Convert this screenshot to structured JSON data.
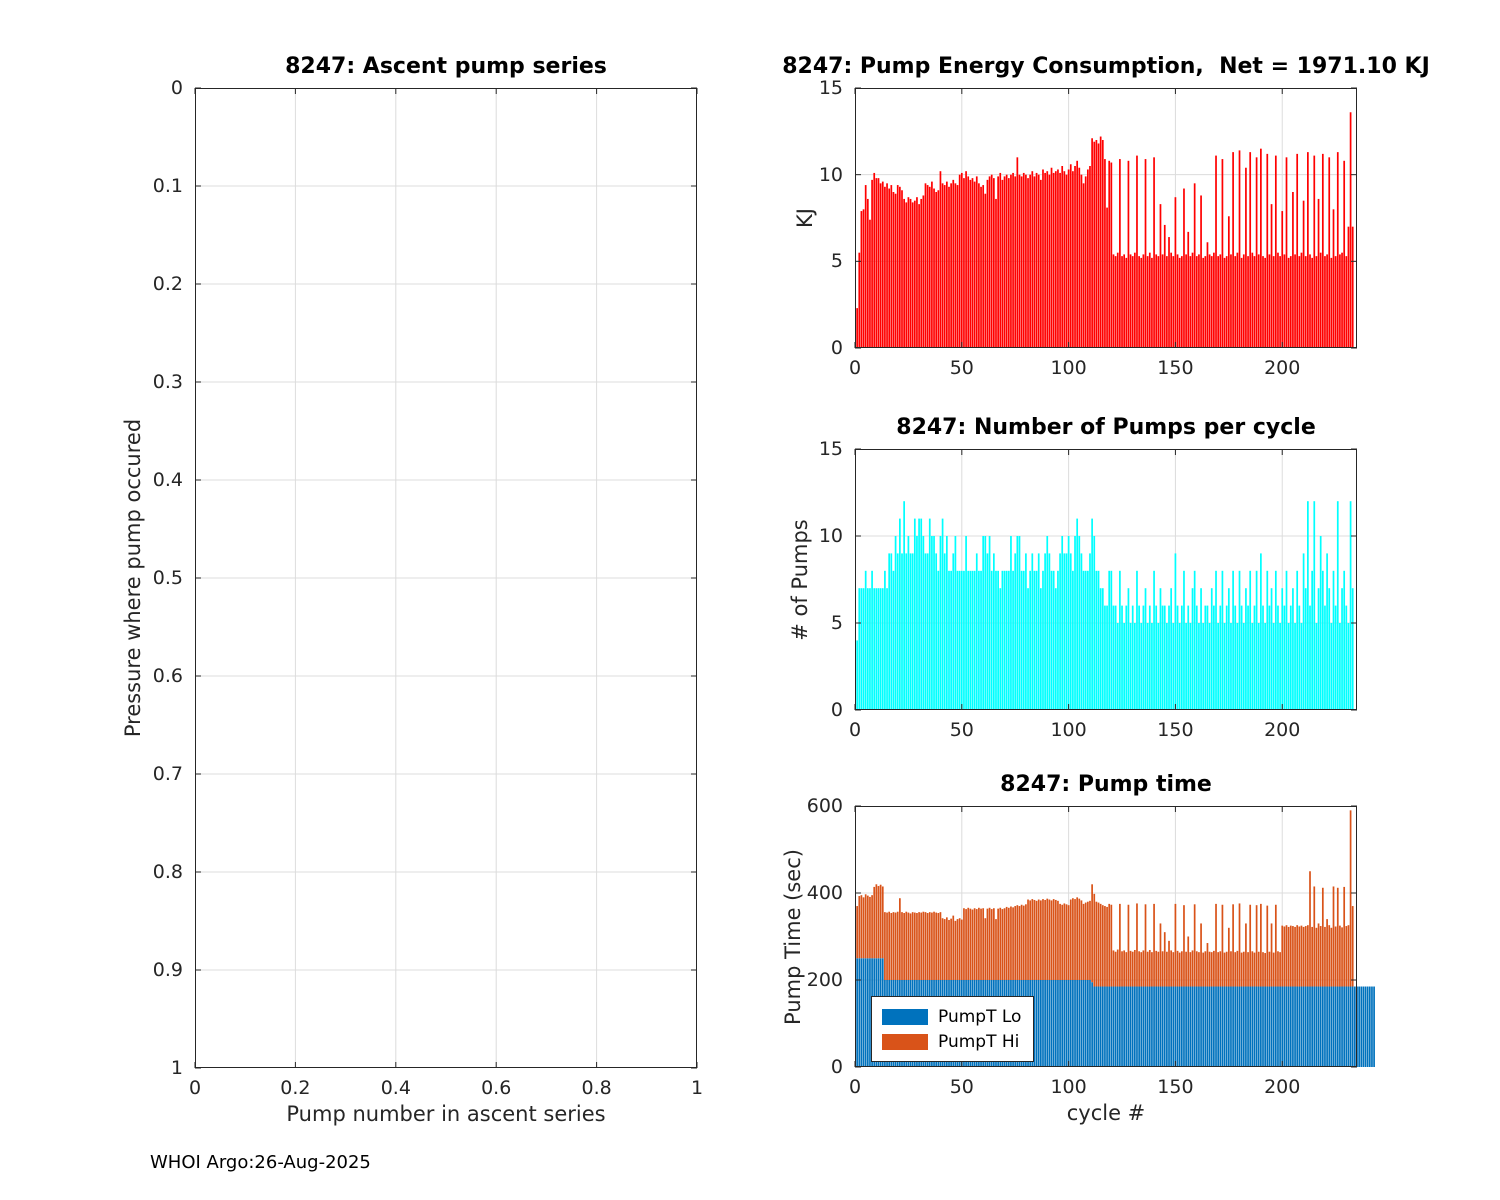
{
  "footer": {
    "text": "WHOI Argo:26-Aug-2025"
  },
  "colors": {
    "axis": "#262626",
    "grid": "#dcdcdc",
    "energy_bar": "#ff0000",
    "pumps_bar": "#00ffff",
    "pumpt_lo": "#0072bd",
    "pumpt_hi": "#d95319"
  },
  "chart_data": [
    {
      "type": "scatter",
      "title": "8247: Ascent pump series",
      "xlabel": "Pump number in ascent series",
      "ylabel": "Pressure where pump occured",
      "xlim": [
        0,
        1
      ],
      "ylim": [
        0,
        1
      ],
      "y_reversed": true,
      "grid": true,
      "xticks": [
        "0",
        "0.2",
        "0.4",
        "0.6",
        "0.8",
        "1"
      ],
      "yticks": [
        "0",
        "0.1",
        "0.2",
        "0.3",
        "0.4",
        "0.5",
        "0.6",
        "0.7",
        "0.8",
        "0.9",
        "1"
      ],
      "values": []
    },
    {
      "type": "bar",
      "title": "8247: Pump Energy Consumption,  Net = 1971.10 KJ",
      "net_kj": 1971.1,
      "xlabel": "",
      "ylabel": "KJ",
      "xlim": [
        0,
        235
      ],
      "ylim": [
        0,
        15
      ],
      "grid": true,
      "xticks": [
        "0",
        "50",
        "100",
        "150",
        "200"
      ],
      "yticks": [
        "0",
        "5",
        "10",
        "15"
      ],
      "bar_color": "#ff0000",
      "values": [
        2.3,
        5.5,
        7.9,
        8.0,
        9.4,
        8.6,
        7.4,
        9.7,
        10.1,
        9.8,
        9.8,
        9.5,
        9.6,
        9.3,
        9.5,
        9.2,
        9.4,
        9.0,
        8.9,
        9.4,
        9.3,
        9.1,
        8.6,
        8.4,
        8.7,
        8.6,
        8.4,
        8.5,
        8.7,
        8.3,
        8.6,
        8.8,
        9.5,
        9.4,
        9.3,
        9.6,
        9.2,
        9.0,
        9.1,
        10.2,
        9.5,
        9.4,
        9.6,
        9.3,
        9.5,
        9.7,
        9.5,
        9.4,
        10.0,
        10.1,
        9.8,
        10.2,
        9.9,
        9.7,
        9.8,
        9.6,
        9.9,
        9.5,
        9.3,
        9.4,
        8.9,
        9.7,
        9.9,
        10.0,
        9.8,
        8.6,
        9.9,
        10.1,
        9.7,
        9.9,
        10.0,
        9.8,
        10.0,
        10.1,
        9.9,
        11.0,
        10.0,
        9.9,
        10.1,
        10.0,
        9.8,
        10.0,
        10.2,
        9.9,
        10.1,
        10.0,
        9.7,
        10.3,
        10.1,
        10.2,
        10.0,
        10.4,
        10.1,
        10.2,
        10.3,
        10.1,
        10.5,
        10.2,
        10.0,
        10.3,
        10.6,
        10.2,
        10.5,
        10.8,
        10.4,
        10.0,
        9.5,
        9.9,
        10.3,
        10.5,
        12.1,
        11.9,
        12.0,
        11.8,
        12.2,
        12.0,
        10.9,
        8.1,
        10.8,
        10.7,
        5.4,
        5.3,
        5.5,
        10.9,
        5.3,
        5.4,
        5.2,
        10.8,
        5.4,
        5.3,
        5.5,
        11.1,
        5.3,
        5.2,
        5.4,
        10.9,
        5.3,
        5.5,
        5.2,
        11.0,
        5.4,
        5.3,
        8.3,
        5.4,
        7.1,
        5.3,
        6.4,
        5.5,
        5.3,
        8.7,
        5.4,
        5.2,
        5.3,
        9.2,
        5.4,
        6.7,
        5.3,
        5.5,
        9.5,
        5.3,
        5.4,
        8.8,
        5.2,
        5.3,
        6.1,
        5.4,
        5.3,
        5.5,
        11.1,
        5.3,
        5.4,
        10.9,
        5.2,
        5.3,
        7.6,
        5.4,
        11.3,
        5.3,
        5.5,
        11.4,
        5.2,
        5.4,
        10.4,
        5.3,
        11.3,
        5.5,
        5.3,
        11.0,
        5.4,
        11.5,
        5.3,
        5.2,
        11.2,
        5.4,
        8.3,
        5.3,
        11.1,
        5.5,
        5.3,
        7.9,
        5.4,
        11.0,
        5.2,
        5.3,
        9.0,
        5.4,
        11.2,
        5.3,
        5.5,
        8.5,
        5.3,
        11.3,
        5.4,
        5.2,
        11.1,
        5.3,
        8.6,
        5.5,
        11.2,
        5.3,
        5.4,
        11.0,
        5.2,
        8.0,
        5.3,
        11.3,
        5.4,
        5.5,
        10.8,
        5.3,
        7.0,
        13.6,
        7.0
      ]
    },
    {
      "type": "bar",
      "title": "8247: Number of Pumps per cycle",
      "xlabel": "",
      "ylabel": "# of Pumps",
      "xlim": [
        0,
        235
      ],
      "ylim": [
        0,
        15
      ],
      "grid": true,
      "xticks": [
        "0",
        "50",
        "100",
        "150",
        "200"
      ],
      "yticks": [
        "0",
        "5",
        "10",
        "15"
      ],
      "bar_color": "#00ffff",
      "values": [
        4,
        7,
        7,
        7,
        8,
        7,
        7,
        8,
        7,
        7,
        7,
        7,
        7,
        8,
        7,
        9,
        9,
        8,
        10,
        9,
        11,
        9,
        12,
        9,
        10,
        9,
        9,
        11,
        10,
        11,
        11,
        10,
        9,
        9,
        11,
        10,
        10,
        9,
        8,
        10,
        11,
        9,
        10,
        8,
        8,
        9,
        10,
        8,
        8,
        8,
        8,
        10,
        8,
        8,
        8,
        8,
        9,
        8,
        8,
        10,
        10,
        9,
        10,
        8,
        9,
        8,
        8,
        7,
        8,
        8,
        8,
        8,
        10,
        8,
        9,
        10,
        10,
        8,
        8,
        9,
        7,
        8,
        9,
        8,
        8,
        9,
        7,
        8,
        9,
        10,
        9,
        8,
        8,
        7,
        8,
        9,
        10,
        9,
        9,
        10,
        9,
        8,
        10,
        11,
        10,
        9,
        8,
        8,
        8,
        9,
        11,
        10,
        8,
        8,
        7,
        7,
        6,
        6,
        8,
        8,
        6,
        6,
        5,
        8,
        6,
        5,
        6,
        7,
        5,
        6,
        5,
        8,
        6,
        5,
        6,
        7,
        5,
        6,
        5,
        8,
        6,
        5,
        7,
        6,
        6,
        5,
        6,
        7,
        5,
        9,
        6,
        5,
        6,
        8,
        5,
        6,
        5,
        7,
        8,
        6,
        5,
        7,
        5,
        6,
        6,
        5,
        7,
        6,
        8,
        5,
        6,
        8,
        5,
        6,
        7,
        5,
        8,
        6,
        5,
        8,
        6,
        5,
        7,
        6,
        8,
        5,
        6,
        8,
        5,
        9,
        6,
        5,
        8,
        6,
        7,
        5,
        8,
        6,
        5,
        7,
        6,
        8,
        5,
        6,
        7,
        5,
        8,
        6,
        5,
        9,
        7,
        12,
        6,
        8,
        12,
        5,
        7,
        10,
        8,
        6,
        9,
        7,
        5,
        8,
        6,
        12,
        5,
        7,
        8,
        6,
        5,
        12,
        7
      ]
    },
    {
      "type": "stacked-bar",
      "title": "8247: Pump time",
      "xlabel": "cycle #",
      "ylabel": "Pump Time (sec)",
      "xlim": [
        0,
        235
      ],
      "ylim": [
        0,
        600
      ],
      "grid": true,
      "legend_position": "lower-left",
      "xticks": [
        "0",
        "50",
        "100",
        "150",
        "200"
      ],
      "yticks": [
        "0",
        "200",
        "400",
        "600"
      ],
      "series": [
        {
          "name": "PumpT Lo",
          "color": "#0072bd",
          "values": [
            250,
            250,
            250,
            250,
            250,
            250,
            250,
            250,
            250,
            250,
            250,
            250,
            250,
            200,
            200,
            200,
            200,
            200,
            200,
            200,
            200,
            200,
            200,
            200,
            200,
            200,
            200,
            200,
            200,
            200,
            200,
            200,
            200,
            200,
            200,
            200,
            200,
            200,
            200,
            200,
            200,
            200,
            200,
            200,
            200,
            200,
            200,
            200,
            200,
            200,
            200,
            200,
            200,
            200,
            200,
            200,
            200,
            200,
            200,
            200,
            200,
            200,
            200,
            200,
            200,
            200,
            200,
            200,
            200,
            200,
            200,
            200,
            200,
            200,
            200,
            200,
            200,
            200,
            200,
            200,
            200,
            200,
            200,
            200,
            200,
            200,
            200,
            200,
            200,
            200,
            200,
            200,
            200,
            200,
            200,
            200,
            200,
            200,
            200,
            200,
            200,
            200,
            200,
            200,
            200,
            200,
            200,
            200,
            200,
            200,
            195,
            185,
            185,
            185,
            185,
            185,
            185,
            185,
            185,
            185,
            185,
            185,
            185,
            185,
            185,
            185,
            185,
            185,
            185,
            185,
            185,
            185,
            185,
            185,
            185,
            185,
            185,
            185,
            185,
            185,
            185,
            185,
            185,
            185,
            185,
            185,
            185,
            185,
            185,
            185,
            185,
            185,
            185,
            185,
            185,
            185,
            185,
            185,
            185,
            185,
            185,
            185,
            185,
            185,
            185,
            185,
            185,
            185,
            185,
            185,
            185,
            185,
            185,
            185,
            185,
            185,
            185,
            185,
            185,
            185,
            185,
            185,
            185,
            185,
            185,
            185,
            185,
            185,
            185,
            185,
            185,
            185,
            185,
            185,
            185,
            185,
            185,
            185,
            185,
            185,
            185,
            185,
            185,
            185,
            185,
            185,
            185,
            185,
            185,
            185,
            185,
            185,
            185,
            185,
            185,
            185,
            185,
            185,
            185,
            185,
            185,
            185,
            185,
            185,
            185,
            185,
            185,
            185,
            185,
            185,
            185,
            185,
            185,
            185,
            185,
            185,
            185,
            185,
            185,
            185,
            185,
            185,
            185
          ]
        },
        {
          "name": "PumpT Hi",
          "color": "#d95319",
          "values": [
            120,
            143,
            145,
            140,
            147,
            144,
            141,
            145,
            164,
            170,
            166,
            169,
            165,
            156,
            155,
            157,
            154,
            156,
            155,
            157,
            188,
            156,
            154,
            157,
            155,
            153,
            156,
            155,
            154,
            156,
            155,
            157,
            156,
            154,
            156,
            155,
            157,
            155,
            154,
            156,
            142,
            140,
            144,
            138,
            141,
            148,
            136,
            140,
            142,
            139,
            165,
            163,
            166,
            164,
            162,
            165,
            163,
            166,
            164,
            165,
            142,
            164,
            166,
            163,
            165,
            140,
            164,
            166,
            163,
            165,
            168,
            166,
            169,
            167,
            170,
            172,
            170,
            173,
            171,
            174,
            185,
            183,
            186,
            184,
            182,
            185,
            183,
            186,
            184,
            187,
            185,
            183,
            186,
            184,
            182,
            175,
            173,
            176,
            174,
            172,
            185,
            188,
            186,
            190,
            187,
            183,
            175,
            178,
            180,
            182,
            225,
            213,
            195,
            193,
            190,
            187,
            185,
            183,
            190,
            188,
            83,
            80,
            85,
            190,
            81,
            83,
            79,
            188,
            82,
            80,
            84,
            191,
            81,
            79,
            83,
            189,
            80,
            84,
            79,
            190,
            82,
            80,
            145,
            81,
            125,
            80,
            105,
            83,
            79,
            190,
            82,
            78,
            81,
            187,
            80,
            115,
            79,
            83,
            189,
            81,
            79,
            145,
            78,
            81,
            100,
            80,
            79,
            82,
            190,
            79,
            81,
            188,
            78,
            80,
            135,
            81,
            189,
            79,
            82,
            191,
            78,
            80,
            145,
            79,
            188,
            81,
            78,
            187,
            80,
            190,
            79,
            77,
            186,
            80,
            145,
            78,
            188,
            81,
            79,
            140,
            138,
            141,
            137,
            140,
            139,
            137,
            141,
            138,
            140,
            137,
            139,
            141,
            265,
            137,
            230,
            135,
            145,
            139,
            227,
            137,
            155,
            141,
            135,
            230,
            138,
            227,
            140,
            136,
            229,
            139,
            141,
            405,
            185
          ]
        }
      ]
    }
  ]
}
